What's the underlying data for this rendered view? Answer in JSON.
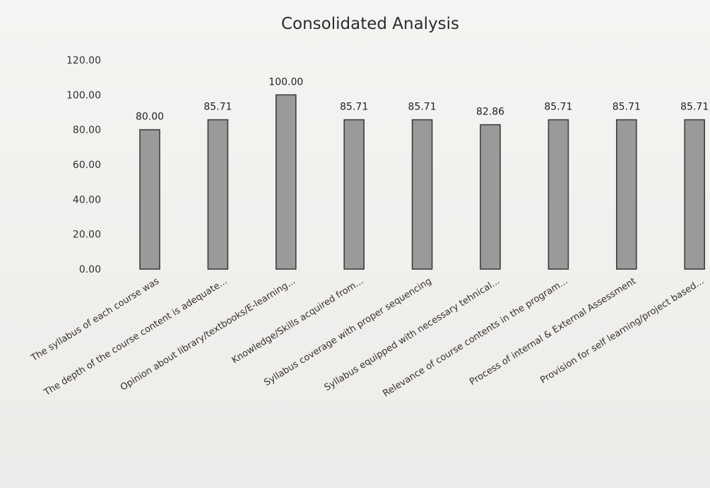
{
  "chart_data": {
    "type": "bar",
    "title": "Consolidated Analysis",
    "xlabel": "",
    "ylabel": "",
    "ylim": [
      0,
      120
    ],
    "yticks": [
      "0.00",
      "20.00",
      "40.00",
      "60.00",
      "80.00",
      "100.00",
      "120.00"
    ],
    "grid": false,
    "legend": "none",
    "bar_color": "#9a9a9a",
    "categories": [
      "The syllabus of each course was",
      "The depth of the course content is adequate...",
      "Opinion about library/textbooks/E-learning...",
      "Knowledge/Skills acquired from...",
      "Syllabus coverage with proper sequencing",
      "Syllabus equipped with necessary tehnical...",
      "Relevance of course contents in the program...",
      "Process of internal & External Assessment",
      "Provision for self learning/project based..."
    ],
    "values": [
      80.0,
      85.71,
      100.0,
      85.71,
      85.71,
      82.86,
      85.71,
      85.71,
      85.71
    ],
    "value_labels": [
      "80.00",
      "85.71",
      "100.00",
      "85.71",
      "85.71",
      "82.86",
      "85.71",
      "85.71",
      "85.71"
    ]
  }
}
